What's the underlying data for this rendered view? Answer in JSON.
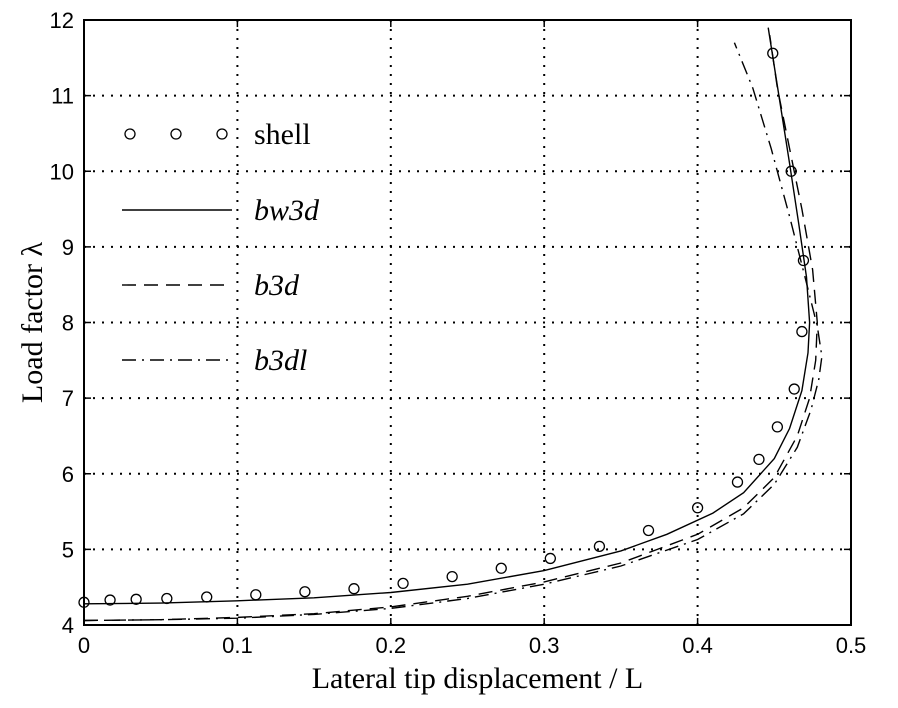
{
  "chart_data": {
    "type": "line",
    "xlabel": "Lateral tip displacement / L",
    "ylabel": "Load factor λ",
    "xlim": [
      0,
      0.5
    ],
    "ylim": [
      4,
      12
    ],
    "xticks": [
      "0",
      "0.1",
      "0.2",
      "0.3",
      "0.4",
      "0.5"
    ],
    "yticks": [
      "4",
      "5",
      "6",
      "7",
      "8",
      "9",
      "10",
      "11",
      "12"
    ],
    "grid": true,
    "legend_position": "top-left",
    "series": [
      {
        "name": "shell",
        "style": "markers",
        "marker": "circle",
        "x": [
          0.0,
          0.017,
          0.034,
          0.054,
          0.08,
          0.112,
          0.144,
          0.176,
          0.208,
          0.24,
          0.272,
          0.304,
          0.336,
          0.368,
          0.4,
          0.426,
          0.44,
          0.452,
          0.463,
          0.468,
          0.469,
          0.461,
          0.449
        ],
        "y": [
          4.3,
          4.33,
          4.34,
          4.35,
          4.37,
          4.4,
          4.44,
          4.48,
          4.55,
          4.64,
          4.75,
          4.88,
          5.04,
          5.25,
          5.55,
          5.89,
          6.19,
          6.62,
          7.12,
          7.88,
          8.82,
          10.0,
          11.56
        ]
      },
      {
        "name": "bw3d",
        "style": "solid",
        "x": [
          0.0,
          0.05,
          0.1,
          0.15,
          0.2,
          0.25,
          0.3,
          0.35,
          0.38,
          0.41,
          0.43,
          0.45,
          0.46,
          0.468,
          0.472,
          0.473,
          0.471,
          0.466,
          0.46,
          0.453,
          0.446
        ],
        "y": [
          4.28,
          4.29,
          4.32,
          4.36,
          4.43,
          4.54,
          4.72,
          4.98,
          5.2,
          5.48,
          5.75,
          6.2,
          6.6,
          7.1,
          7.6,
          8.0,
          8.6,
          9.3,
          10.1,
          11.0,
          11.9
        ]
      },
      {
        "name": "b3d",
        "style": "dashed",
        "x": [
          0.0,
          0.05,
          0.1,
          0.15,
          0.2,
          0.25,
          0.3,
          0.35,
          0.4,
          0.43,
          0.45,
          0.465,
          0.473,
          0.477,
          0.478,
          0.475,
          0.468,
          0.46,
          0.452,
          0.447
        ],
        "y": [
          4.06,
          4.07,
          4.1,
          4.15,
          4.24,
          4.38,
          4.57,
          4.82,
          5.2,
          5.55,
          5.95,
          6.5,
          7.0,
          7.5,
          8.0,
          8.7,
          9.5,
          10.3,
          11.1,
          11.8
        ]
      },
      {
        "name": "b3dl",
        "style": "dashdot",
        "x": [
          0.0,
          0.05,
          0.1,
          0.15,
          0.2,
          0.25,
          0.3,
          0.35,
          0.4,
          0.43,
          0.45,
          0.465,
          0.474,
          0.479,
          0.481,
          0.478,
          0.47,
          0.46,
          0.448,
          0.436,
          0.424
        ],
        "y": [
          4.06,
          4.07,
          4.09,
          4.14,
          4.22,
          4.35,
          4.54,
          4.78,
          5.13,
          5.47,
          5.86,
          6.35,
          6.85,
          7.25,
          7.55,
          7.95,
          8.6,
          9.4,
          10.3,
          11.1,
          11.7
        ]
      }
    ]
  }
}
